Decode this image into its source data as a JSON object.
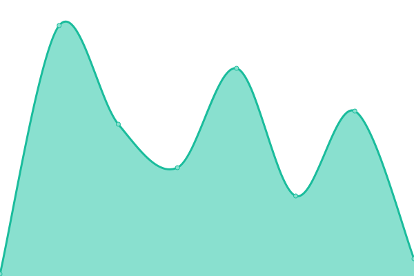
{
  "chart_data": {
    "type": "area",
    "title": "",
    "xlabel": "",
    "ylabel": "",
    "x": [
      0,
      1,
      2,
      3,
      4,
      5,
      6,
      7
    ],
    "values": [
      3,
      363,
      220,
      157,
      301,
      116,
      239,
      25
    ],
    "ylim": [
      0,
      400
    ],
    "xlim": [
      0,
      7
    ],
    "grid": false,
    "axes_visible": false,
    "legend": "none",
    "smooth": true,
    "colors": {
      "fill": "#89e0cf",
      "line": "#1abc9c",
      "marker_fill": "#89e0cf",
      "marker_stroke": "#1abc9c",
      "background": "#ffffff"
    }
  }
}
